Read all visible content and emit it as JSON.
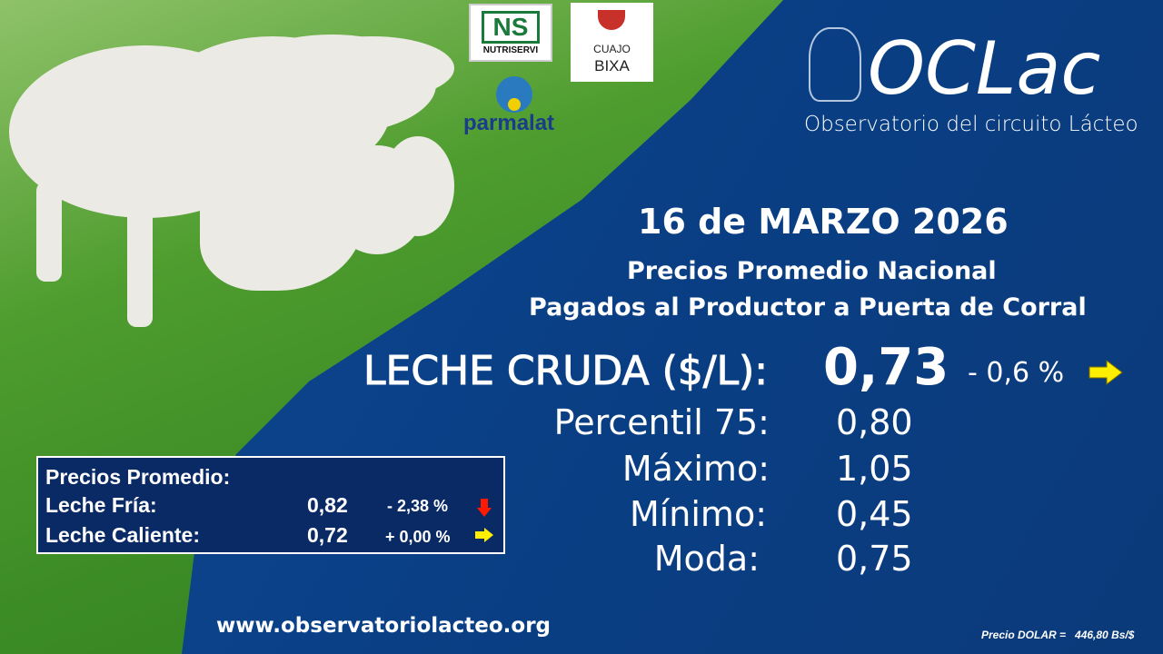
{
  "logos": {
    "nutriservi": "NUTRISERVI",
    "cuajo": "CUAJO",
    "bixa": "BIXA",
    "parmalat": "parmalat",
    "oclac": "OCLac",
    "oclac_subtitle": "Observatorio del circuito Lácteo"
  },
  "date": "16 de MARZO 2026",
  "subtitle_line1": "Precios Promedio Nacional",
  "subtitle_line2": "Pagados al Productor a Puerta de Corral",
  "main": {
    "label": "LECHE CRUDA ($/L):",
    "value": "0,73",
    "change": "- 0,6 %",
    "trend": "arrow-right",
    "trend_color": "#ffee00"
  },
  "stats": [
    {
      "label": "Percentil 75:",
      "value": "0,80"
    },
    {
      "label": "Máximo:",
      "value": "1,05"
    },
    {
      "label": "Mínimo:",
      "value": "0,45"
    },
    {
      "label": "Moda:",
      "value": "0,75"
    }
  ],
  "box": {
    "title": "Precios Promedio:",
    "rows": [
      {
        "label": "Leche Fría:",
        "value": "0,82",
        "change": "-  2,38 %",
        "trend": "arrow-down",
        "trend_color": "#ff1a00"
      },
      {
        "label": "Leche Caliente:",
        "value": "0,72",
        "change": "+  0,00 %",
        "trend": "arrow-right",
        "trend_color": "#ffee00"
      }
    ]
  },
  "website": "www.observatoriolacteo.org",
  "dollar": "Precio DOLAR =   446,80 Bs/$"
}
